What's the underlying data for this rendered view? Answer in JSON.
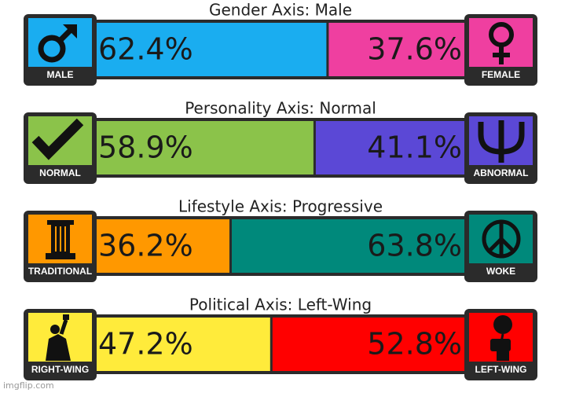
{
  "chart_data": [
    {
      "type": "stacked-bar",
      "title": "Gender Axis: Male",
      "series": [
        {
          "name": "MALE",
          "color": "#1aadf0",
          "values": [
            62.4
          ],
          "value_labels": [
            "62.4%"
          ]
        },
        {
          "name": "FEMALE",
          "color": "#ef3fa0",
          "values": [
            37.6
          ],
          "value_labels": [
            "37.6%"
          ]
        }
      ]
    },
    {
      "type": "stacked-bar",
      "title": "Personality Axis: Normal",
      "series": [
        {
          "name": "NORMAL",
          "color": "#8bc34a",
          "values": [
            58.9
          ],
          "value_labels": [
            "58.9%"
          ]
        },
        {
          "name": "ABNORMAL",
          "color": "#5b48d6",
          "values": [
            41.1
          ],
          "value_labels": [
            "41.1%"
          ]
        }
      ]
    },
    {
      "type": "stacked-bar",
      "title": "Lifestyle Axis: Progressive",
      "series": [
        {
          "name": "TRADITIONAL",
          "color": "#ff9800",
          "values": [
            36.2
          ],
          "value_labels": [
            "36.2%"
          ]
        },
        {
          "name": "WOKE",
          "color": "#00897b",
          "values": [
            63.8
          ],
          "value_labels": [
            "63.8%"
          ]
        }
      ]
    },
    {
      "type": "stacked-bar",
      "title": "Political Axis: Left-Wing",
      "series": [
        {
          "name": "RIGHT-WING",
          "color": "#ffeb3b",
          "values": [
            47.2
          ],
          "value_labels": [
            "47.2%"
          ]
        },
        {
          "name": "LEFT-WING",
          "color": "#ff0000",
          "values": [
            52.8
          ],
          "value_labels": [
            "52.8%"
          ]
        }
      ]
    }
  ],
  "watermark": "imgflip.com"
}
